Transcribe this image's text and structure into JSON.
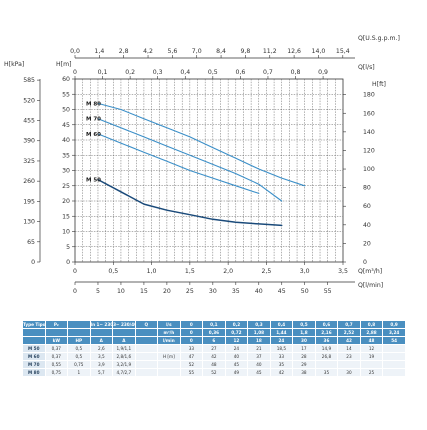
{
  "chart_data": {
    "type": "line",
    "xlabel": "Q[m³/h]",
    "ylabel": "H[m]",
    "x": {
      "min": 0,
      "max": 3.5,
      "ticks": [
        0,
        0.5,
        1.0,
        1.5,
        2.0,
        2.5,
        3.0,
        3.5
      ],
      "tick_labels": [
        "0",
        "0,5",
        "1,0",
        "1,5",
        "2,0",
        "2,5",
        "3,0",
        "3,5"
      ]
    },
    "y": {
      "min": 0,
      "max": 60,
      "ticks": [
        0,
        5,
        10,
        15,
        20,
        25,
        30,
        35,
        40,
        45,
        50,
        55,
        60
      ],
      "tick_labels": [
        "0",
        "5",
        "10",
        "15",
        "20",
        "25",
        "30",
        "35",
        "40",
        "45",
        "50",
        "55",
        "60"
      ]
    },
    "grid": true,
    "secondary_axes": {
      "top_outer": {
        "label": "Q[U.S.g.p.m.]",
        "ticks": [
          "0,0",
          "1,4",
          "2,8",
          "4,2",
          "5,6",
          "7,0",
          "8,4",
          "9,8",
          "11,2",
          "12,6",
          "14,0",
          "15,4"
        ]
      },
      "top_inner": {
        "label": "Q[l/s]",
        "ticks": [
          "0",
          "0,1",
          "0,2",
          "0,3",
          "0,4",
          "0,5",
          "0,6",
          "0,7",
          "0,8",
          "0,9"
        ]
      },
      "bottom_inner": {
        "label": "Q[l/min]",
        "ticks": [
          "0",
          "5",
          "10",
          "15",
          "20",
          "25",
          "30",
          "35",
          "40",
          "45",
          "50",
          "55"
        ]
      },
      "left_outer": {
        "label": "H[kPa]",
        "ticks": [
          "0",
          "65",
          "130",
          "195",
          "260",
          "325",
          "390",
          "455",
          "520",
          "585"
        ]
      },
      "right": {
        "label": "H[ft]",
        "ticks": [
          "0",
          "20",
          "40",
          "60",
          "80",
          "100",
          "120",
          "140",
          "160",
          "180"
        ]
      }
    },
    "series": [
      {
        "name": "M 80",
        "x": [
          0.3,
          0.6,
          0.9,
          1.2,
          1.5,
          1.8,
          2.1,
          2.4,
          2.7,
          3.0
        ],
        "values": [
          52,
          50,
          47,
          44,
          41,
          37.5,
          34,
          30.5,
          27.5,
          25
        ],
        "color": "#3b8fc8"
      },
      {
        "name": "M 70",
        "x": [
          0.3,
          0.6,
          0.9,
          1.2,
          1.5,
          1.8,
          2.1,
          2.4,
          2.7
        ],
        "values": [
          47,
          44,
          41,
          38,
          35,
          32,
          29,
          25.5,
          20
        ],
        "color": "#3b8fc8"
      },
      {
        "name": "M 60",
        "x": [
          0.3,
          0.6,
          0.9,
          1.2,
          1.5,
          1.8,
          2.1,
          2.4
        ],
        "values": [
          42,
          39,
          36,
          33,
          30,
          27.5,
          25,
          22.5
        ],
        "color": "#3b8fc8"
      },
      {
        "name": "M 50",
        "x": [
          0.3,
          0.6,
          0.9,
          1.2,
          1.5,
          1.8,
          2.1,
          2.4,
          2.7
        ],
        "values": [
          27,
          23,
          19,
          17,
          15.5,
          14,
          13,
          12.5,
          12
        ],
        "color": "#1a4a7a"
      }
    ]
  },
  "table": {
    "header1": [
      "Type Tipo",
      "P₂",
      "",
      "In 1~ 230V",
      "3~ 230/400V",
      "",
      "l/s",
      "0",
      "0,1",
      "0,2",
      "0,3",
      "0,4",
      "0,5",
      "0,6",
      "0,7",
      "0,8",
      "0,9"
    ],
    "header2": [
      "",
      "",
      "",
      "",
      "",
      "",
      "m³/h",
      "0",
      "0,36",
      "0,72",
      "1,08",
      "1,44",
      "1,8",
      "2,16",
      "2,52",
      "2,88",
      "3,24"
    ],
    "header3": [
      "",
      "kW",
      "HP",
      "A",
      "A",
      "",
      "l/min",
      "0",
      "6",
      "12",
      "18",
      "24",
      "30",
      "36",
      "42",
      "48",
      "54"
    ],
    "rows": [
      {
        "model": "M 50",
        "kw": "0,37",
        "hp": "0,5",
        "a1": "2,6",
        "a3": "1,9/1,1",
        "h": [
          "33",
          "27",
          "24",
          "21",
          "18,5",
          "17",
          "14,9",
          "14",
          "12",
          ""
        ]
      },
      {
        "model": "M 60",
        "kw": "0,37",
        "hp": "0,5",
        "a1": "3,5",
        "a3": "2,8/1,6",
        "h": [
          "47",
          "42",
          "40",
          "37",
          "33",
          "28",
          "26,8",
          "23",
          "19",
          ""
        ]
      },
      {
        "model": "M 70",
        "kw": "0,55",
        "hp": "0,75",
        "a1": "3,9",
        "a3": "3,2/1,9",
        "h": [
          "52",
          "48",
          "45",
          "40",
          "35",
          "29",
          "",
          "",
          "",
          ""
        ]
      },
      {
        "model": "M 80",
        "kw": "0,75",
        "hp": "1",
        "a1": "5,7",
        "a3": "4,7/2,7",
        "h": [
          "55",
          "52",
          "49",
          "45",
          "42",
          "38",
          "35",
          "30",
          "25",
          ""
        ]
      }
    ],
    "h_label": "H [m]"
  },
  "colors": {
    "grid": "#555555",
    "axis": "#333333",
    "text": "#333333",
    "table_header": "#4a8fc0"
  }
}
